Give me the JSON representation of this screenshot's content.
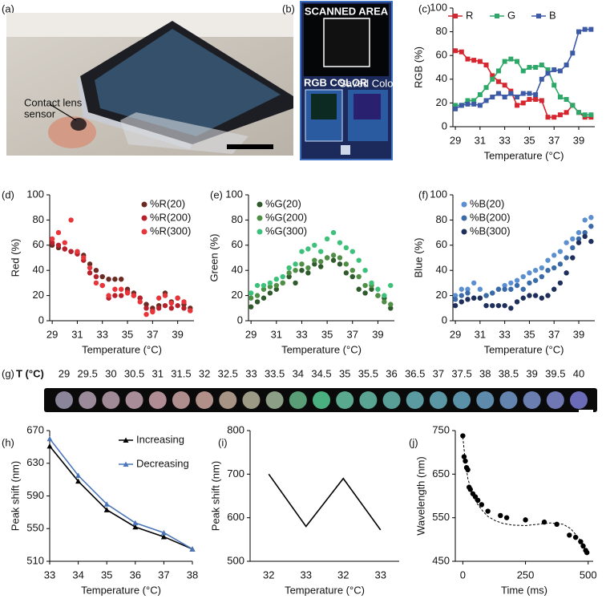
{
  "photo": {
    "label": "(a)",
    "annotation": [
      "Contact lens",
      "sensor"
    ]
  },
  "app": {
    "label": "(b)",
    "title": "SCANNED AREA",
    "section": "RGB COLOR",
    "saved": "Saved Color"
  },
  "chart_data": [
    {
      "type": "line",
      "label": "(c)",
      "xlabel": "Temperature (°C)",
      "ylabel": "RGB (%)",
      "x": [
        29,
        29.5,
        30,
        30.5,
        31,
        31.5,
        32,
        32.5,
        33,
        33.5,
        34,
        34.5,
        35,
        35.5,
        36,
        36.5,
        37,
        37.5,
        38,
        38.5,
        39,
        39.5,
        40
      ],
      "xlim": [
        28.8,
        40.3
      ],
      "xticks": [
        29,
        31,
        33,
        35,
        37,
        39
      ],
      "ylim": [
        0,
        100
      ],
      "yticks": [
        0,
        20,
        40,
        60,
        80,
        100
      ],
      "legend": "top",
      "marker": "square",
      "series": [
        {
          "name": "R",
          "color": "#d6262f",
          "values": [
            64,
            63,
            57,
            56,
            55,
            52,
            43,
            38,
            35,
            30,
            18,
            20,
            23,
            23,
            22,
            8,
            8,
            10,
            12,
            18,
            12,
            8,
            8
          ]
        },
        {
          "name": "G",
          "color": "#2ea869",
          "values": [
            18,
            18,
            22,
            22,
            27,
            33,
            40,
            47,
            55,
            57,
            55,
            47,
            50,
            50,
            52,
            48,
            35,
            25,
            23,
            18,
            12,
            10,
            10
          ]
        },
        {
          "name": "B",
          "color": "#3c5aa6",
          "values": [
            15,
            18,
            19,
            19,
            18,
            22,
            25,
            28,
            25,
            28,
            25,
            28,
            28,
            27,
            40,
            45,
            48,
            47,
            52,
            62,
            80,
            82,
            82
          ]
        }
      ]
    },
    {
      "type": "scatter",
      "label": "(d)",
      "xlabel": "Temperature (°C)",
      "ylabel": "Red (%)",
      "x": [
        29,
        29.5,
        30,
        30.5,
        31,
        31.5,
        32,
        32.5,
        33,
        33.5,
        34,
        34.5,
        35,
        35.5,
        36,
        36.5,
        37,
        37.5,
        38,
        38.5,
        39,
        39.5,
        40
      ],
      "xlim": [
        28.8,
        40.3
      ],
      "xticks": [
        29,
        31,
        33,
        35,
        37,
        39
      ],
      "ylim": [
        0,
        100
      ],
      "yticks": [
        0,
        20,
        40,
        60,
        80,
        100
      ],
      "legend": "upper right",
      "series": [
        {
          "name": "%R(20)",
          "color": "#6b2a22",
          "values": [
            60,
            58,
            57,
            55,
            54,
            52,
            45,
            40,
            35,
            33,
            33,
            33,
            25,
            22,
            18,
            13,
            10,
            12,
            22,
            15,
            18,
            13,
            10
          ]
        },
        {
          "name": "%R(200)",
          "color": "#b8202c",
          "values": [
            62,
            60,
            57,
            55,
            53,
            48,
            38,
            35,
            28,
            18,
            20,
            20,
            23,
            20,
            18,
            10,
            8,
            10,
            12,
            10,
            12,
            10,
            8
          ]
        },
        {
          "name": "%R(300)",
          "color": "#e8353a",
          "values": [
            65,
            70,
            62,
            80,
            55,
            50,
            42,
            30,
            28,
            20,
            25,
            25,
            22,
            20,
            15,
            5,
            7,
            18,
            20,
            14,
            18,
            15,
            8
          ]
        }
      ]
    },
    {
      "type": "scatter",
      "label": "(e)",
      "xlabel": "Temperature (°C)",
      "ylabel": "Green (%)",
      "x": [
        29,
        29.5,
        30,
        30.5,
        31,
        31.5,
        32,
        32.5,
        33,
        33.5,
        34,
        34.5,
        35,
        35.5,
        36,
        36.5,
        37,
        37.5,
        38,
        38.5,
        39,
        39.5,
        40
      ],
      "xlim": [
        28.8,
        40.3
      ],
      "xticks": [
        29,
        31,
        33,
        35,
        37,
        39
      ],
      "ylim": [
        0,
        100
      ],
      "yticks": [
        0,
        20,
        40,
        60,
        80,
        100
      ],
      "legend": "upper left",
      "series": [
        {
          "name": "%G(20)",
          "color": "#2f5a2c",
          "values": [
            11,
            15,
            18,
            22,
            25,
            30,
            35,
            30,
            40,
            38,
            45,
            43,
            50,
            48,
            45,
            38,
            35,
            25,
            22,
            25,
            20,
            18,
            10
          ]
        },
        {
          "name": "%G(200)",
          "color": "#4f8f45",
          "values": [
            18,
            20,
            25,
            27,
            28,
            30,
            38,
            40,
            45,
            42,
            48,
            47,
            50,
            52,
            50,
            45,
            40,
            35,
            28,
            28,
            20,
            15,
            13
          ]
        },
        {
          "name": "%G(300)",
          "color": "#3cc07a",
          "values": [
            22,
            28,
            28,
            30,
            33,
            35,
            42,
            45,
            55,
            57,
            60,
            55,
            65,
            70,
            62,
            58,
            55,
            48,
            40,
            30,
            25,
            20,
            28
          ]
        }
      ]
    },
    {
      "type": "scatter",
      "label": "(f)",
      "xlabel": "Temperature (°C)",
      "ylabel": "Blue (%)",
      "x": [
        29,
        29.5,
        30,
        30.5,
        31,
        31.5,
        32,
        32.5,
        33,
        33.5,
        34,
        34.5,
        35,
        35.5,
        36,
        36.5,
        37,
        37.5,
        38,
        38.5,
        39,
        39.5,
        40
      ],
      "xlim": [
        28.8,
        40.3
      ],
      "xticks": [
        29,
        31,
        33,
        35,
        37,
        39
      ],
      "ylim": [
        0,
        100
      ],
      "yticks": [
        0,
        20,
        40,
        60,
        80,
        100
      ],
      "legend": "upper left",
      "series": [
        {
          "name": "%B(20)",
          "color": "#5c8fd0",
          "values": [
            20,
            25,
            25,
            30,
            25,
            20,
            22,
            25,
            28,
            30,
            32,
            35,
            38,
            40,
            42,
            48,
            52,
            55,
            62,
            65,
            70,
            80,
            82
          ]
        },
        {
          "name": "%B(200)",
          "color": "#3a6aa8",
          "values": [
            17,
            20,
            22,
            18,
            18,
            20,
            22,
            25,
            25,
            25,
            28,
            25,
            30,
            32,
            35,
            40,
            42,
            45,
            50,
            58,
            65,
            70,
            75
          ]
        },
        {
          "name": "%B(300)",
          "color": "#1e2f5c",
          "values": [
            12,
            15,
            17,
            18,
            18,
            12,
            12,
            12,
            12,
            10,
            15,
            18,
            20,
            20,
            18,
            20,
            25,
            30,
            38,
            50,
            62,
            67,
            63
          ]
        }
      ]
    },
    {
      "type": "swatch",
      "label": "(g)",
      "xlabel": "T (°C)",
      "x": [
        29,
        29.5,
        30,
        30.5,
        31,
        31.5,
        32,
        32.5,
        33,
        33.5,
        34,
        34.5,
        35,
        35.5,
        36,
        36.5,
        37,
        37.5,
        38,
        38.5,
        39,
        39.5,
        40
      ],
      "colors": [
        "#8a8599",
        "#9a8a9a",
        "#a08a98",
        "#a88c98",
        "#b08c94",
        "#b08e8e",
        "#b09088",
        "#a89484",
        "#9c9a84",
        "#8c9e86",
        "#5a9e78",
        "#4ab080",
        "#5aa88e",
        "#5aa494",
        "#5a9e98",
        "#5a9aa0",
        "#5a96a4",
        "#5a90a8",
        "#5e8aac",
        "#6284ae",
        "#6a7eb0",
        "#7078b4",
        "#6a6cb8"
      ]
    },
    {
      "type": "line",
      "label": "(h)",
      "xlabel": "Temperature (°C)",
      "ylabel": "Peak shift (nm)",
      "x": [
        33,
        34,
        35,
        36,
        37,
        38
      ],
      "xlim": [
        33,
        38
      ],
      "xticks": [
        33,
        34,
        35,
        36,
        37,
        38
      ],
      "ylim": [
        510,
        670
      ],
      "yticks": [
        510,
        550,
        590,
        630,
        670
      ],
      "legend": "upper right",
      "marker": "triangle",
      "series": [
        {
          "name": "Increasing",
          "color": "#000000",
          "values": [
            651,
            608,
            573,
            552,
            540,
            525
          ]
        },
        {
          "name": "Decreasing",
          "color": "#4a76b8",
          "values": [
            660,
            615,
            580,
            557,
            545,
            525
          ]
        }
      ]
    },
    {
      "type": "line",
      "label": "(i)",
      "xlabel": "Temperature (°C)",
      "ylabel": "Peak shift (nm)",
      "categories": [
        "32",
        "33",
        "32",
        "33"
      ],
      "values": [
        700,
        580,
        690,
        572
      ],
      "color": "#000000",
      "ylim": [
        500,
        800
      ],
      "yticks": [
        500,
        600,
        700,
        800
      ]
    },
    {
      "type": "scatter",
      "label": "(j)",
      "xlabel": "Time (ms)",
      "ylabel": "Wavelength (nm)",
      "x": [
        0,
        5,
        10,
        15,
        20,
        25,
        30,
        40,
        50,
        60,
        75,
        100,
        150,
        175,
        250,
        325,
        375,
        425,
        450,
        470,
        480,
        490,
        495
      ],
      "values": [
        738,
        690,
        680,
        665,
        660,
        620,
        615,
        605,
        598,
        590,
        580,
        565,
        555,
        550,
        545,
        540,
        535,
        510,
        505,
        495,
        485,
        475,
        470
      ],
      "color": "#000000",
      "xlim": [
        -30,
        520
      ],
      "xticks": [
        0,
        250,
        500
      ],
      "ylim": [
        450,
        750
      ],
      "yticks": [
        450,
        550,
        650,
        750
      ],
      "fit": {
        "x": [
          0,
          10,
          20,
          40,
          60,
          80,
          100,
          130,
          160,
          200,
          250,
          300,
          350,
          400,
          430,
          460,
          480,
          500
        ],
        "values": [
          735,
          680,
          640,
          600,
          580,
          565,
          553,
          543,
          537,
          533,
          532,
          535,
          538,
          535,
          525,
          505,
          490,
          470
        ]
      }
    }
  ]
}
